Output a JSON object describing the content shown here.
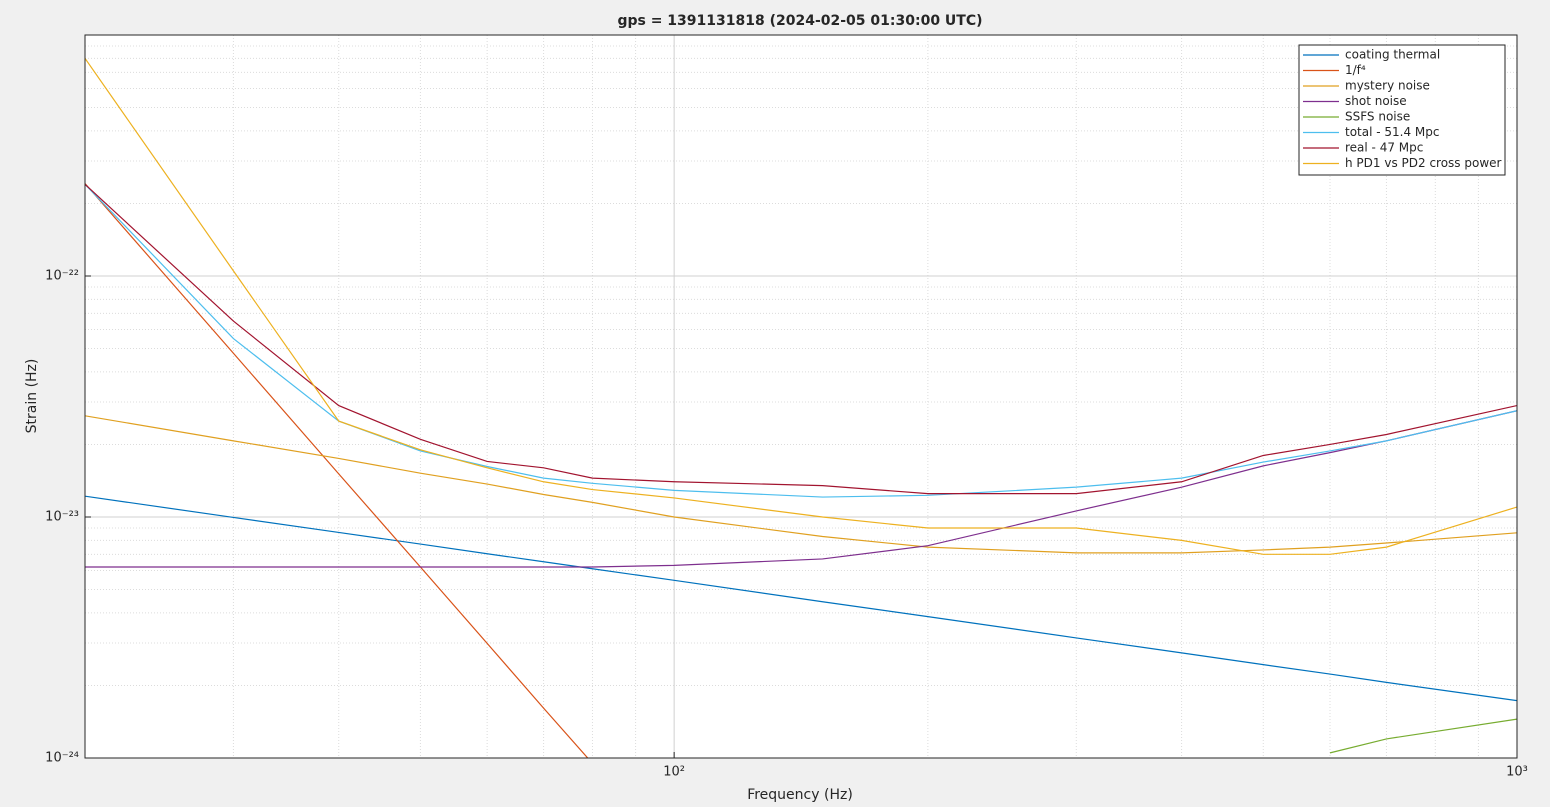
{
  "chart_data": {
    "type": "line",
    "title": "gps = 1391131818 (2024-02-05 01:30:00 UTC)",
    "x_label": "Frequency (Hz)",
    "y_label": "Strain (Hz)",
    "x": [
      20,
      30,
      40,
      50,
      60,
      70,
      80,
      100,
      150,
      200,
      300,
      400,
      500,
      600,
      700,
      1000
    ],
    "xlim": [
      20,
      1000
    ],
    "ylim": [
      1e-24,
      1e-21
    ],
    "xticks": [
      {
        "value": 100,
        "label": "10²"
      },
      {
        "value": 1000,
        "label": "10³"
      }
    ],
    "yticks": [
      {
        "value": 1e-24,
        "label": "10⁻²⁴"
      },
      {
        "value": 1e-23,
        "label": "10⁻²³"
      },
      {
        "value": 1e-22,
        "label": "10⁻²²"
      }
    ],
    "xscale": "log",
    "yscale": "log",
    "grid": true,
    "minor_grid": true,
    "legend": "upper right",
    "series": [
      {
        "name": "coating thermal",
        "color": "#0072bd",
        "values": [
          1.22e-23,
          9.96e-24,
          8.63e-24,
          7.72e-24,
          7.04e-24,
          6.52e-24,
          6.1e-24,
          5.46e-24,
          4.45e-24,
          3.86e-24,
          3.15e-24,
          2.73e-24,
          2.44e-24,
          2.23e-24,
          2.06e-24,
          1.73e-24
        ]
      },
      {
        "name": "1/f⁴",
        "color": "#d95319",
        "values": [
          2.42e-22,
          4.78e-23,
          1.51e-23,
          6.2e-24,
          2.99e-24,
          1.61e-24,
          9.5e-25,
          null,
          null,
          null,
          null,
          null,
          null,
          null,
          null,
          null
        ]
      },
      {
        "name": "mystery noise",
        "color": "#e0a020",
        "values": [
          2.63e-23,
          2.07e-23,
          1.75e-23,
          1.52e-23,
          1.37e-23,
          1.24e-23,
          1.15e-23,
          1e-23,
          8.3e-24,
          7.5e-24,
          7.1e-24,
          7.1e-24,
          7.3e-24,
          7.5e-24,
          7.8e-24,
          8.6e-24
        ]
      },
      {
        "name": "shot noise",
        "color": "#7e2f8e",
        "values": [
          6.2e-24,
          6.2e-24,
          6.2e-24,
          6.2e-24,
          6.2e-24,
          6.2e-24,
          6.2e-24,
          6.3e-24,
          6.7e-24,
          7.6e-24,
          1.06e-23,
          1.33e-23,
          1.63e-23,
          1.85e-23,
          2.07e-23,
          2.76e-23
        ]
      },
      {
        "name": "SSFS noise",
        "color": "#77ac30",
        "values": [
          null,
          null,
          null,
          null,
          null,
          null,
          null,
          null,
          null,
          null,
          null,
          null,
          null,
          1.05e-24,
          1.2e-24,
          1.45e-24
        ]
      },
      {
        "name": "total - 51.4 Mpc",
        "color": "#4dbeee",
        "values": [
          2.4e-22,
          5.5e-23,
          2.5e-23,
          1.88e-23,
          1.62e-23,
          1.45e-23,
          1.38e-23,
          1.29e-23,
          1.21e-23,
          1.23e-23,
          1.33e-23,
          1.45e-23,
          1.69e-23,
          1.88e-23,
          2.07e-23,
          2.76e-23
        ]
      },
      {
        "name": "real - 47 Mpc",
        "color": "#a2142f",
        "values": [
          2.4e-22,
          6.5e-23,
          2.9e-23,
          2.1e-23,
          1.7e-23,
          1.6e-23,
          1.45e-23,
          1.4e-23,
          1.35e-23,
          1.25e-23,
          1.25e-23,
          1.4e-23,
          1.8e-23,
          2e-23,
          2.2e-23,
          2.9e-23
        ]
      },
      {
        "name": "h PD1 vs PD2 cross power",
        "color": "#edb120",
        "values": [
          8e-22,
          1.05e-22,
          2.5e-23,
          1.9e-23,
          1.6e-23,
          1.4e-23,
          1.3e-23,
          1.2e-23,
          1e-23,
          9e-24,
          9e-24,
          8e-24,
          7e-24,
          7e-24,
          7.5e-24,
          1.1e-23
        ]
      }
    ]
  }
}
